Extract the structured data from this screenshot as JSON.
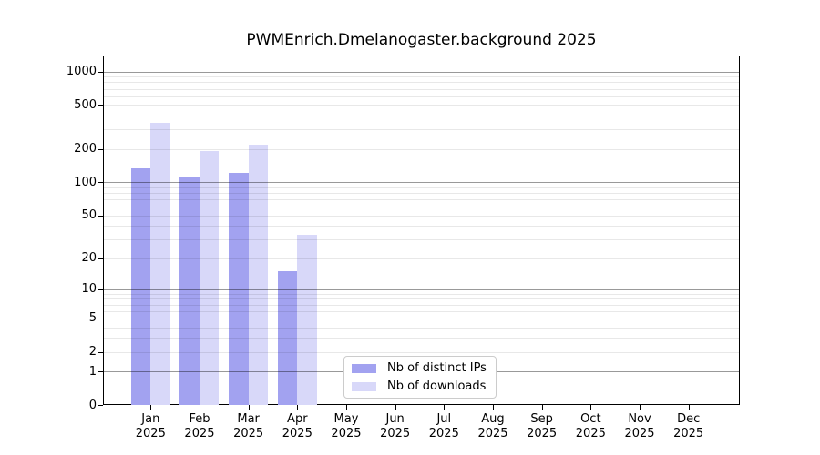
{
  "title": "PWMEnrich.Dmelanogaster.background 2025",
  "chart_data": {
    "type": "bar",
    "title": "PWMEnrich.Dmelanogaster.background 2025",
    "xlabel": "",
    "ylabel": "",
    "year": "2025",
    "categories": [
      "Jan",
      "Feb",
      "Mar",
      "Apr",
      "May",
      "Jun",
      "Jul",
      "Aug",
      "Sep",
      "Oct",
      "Nov",
      "Dec"
    ],
    "series": [
      {
        "name": "Nb of distinct IPs",
        "color": "#a2a2f0",
        "values": [
          133,
          113,
          121,
          15,
          0,
          0,
          0,
          0,
          0,
          0,
          0,
          0
        ]
      },
      {
        "name": "Nb of downloads",
        "color": "#d8d8f9",
        "values": [
          347,
          192,
          219,
          33,
          0,
          0,
          0,
          0,
          0,
          0,
          0,
          0
        ]
      }
    ],
    "y_scale": "log10(1+value)",
    "y_ticks": [
      0,
      1,
      2,
      5,
      10,
      20,
      50,
      100,
      200,
      500,
      1000
    ],
    "ylim": [
      0,
      1370
    ],
    "grid": "horizontal: light minor lines at 2-9 per decade, darker lines at 1, 10, 100, 1000",
    "legend_position": "inside bottom-center"
  },
  "legend": {
    "items": [
      {
        "label": "Nb of distinct IPs",
        "color": "#a2a2f0"
      },
      {
        "label": "Nb of downloads",
        "color": "#d8d8f9"
      }
    ]
  }
}
